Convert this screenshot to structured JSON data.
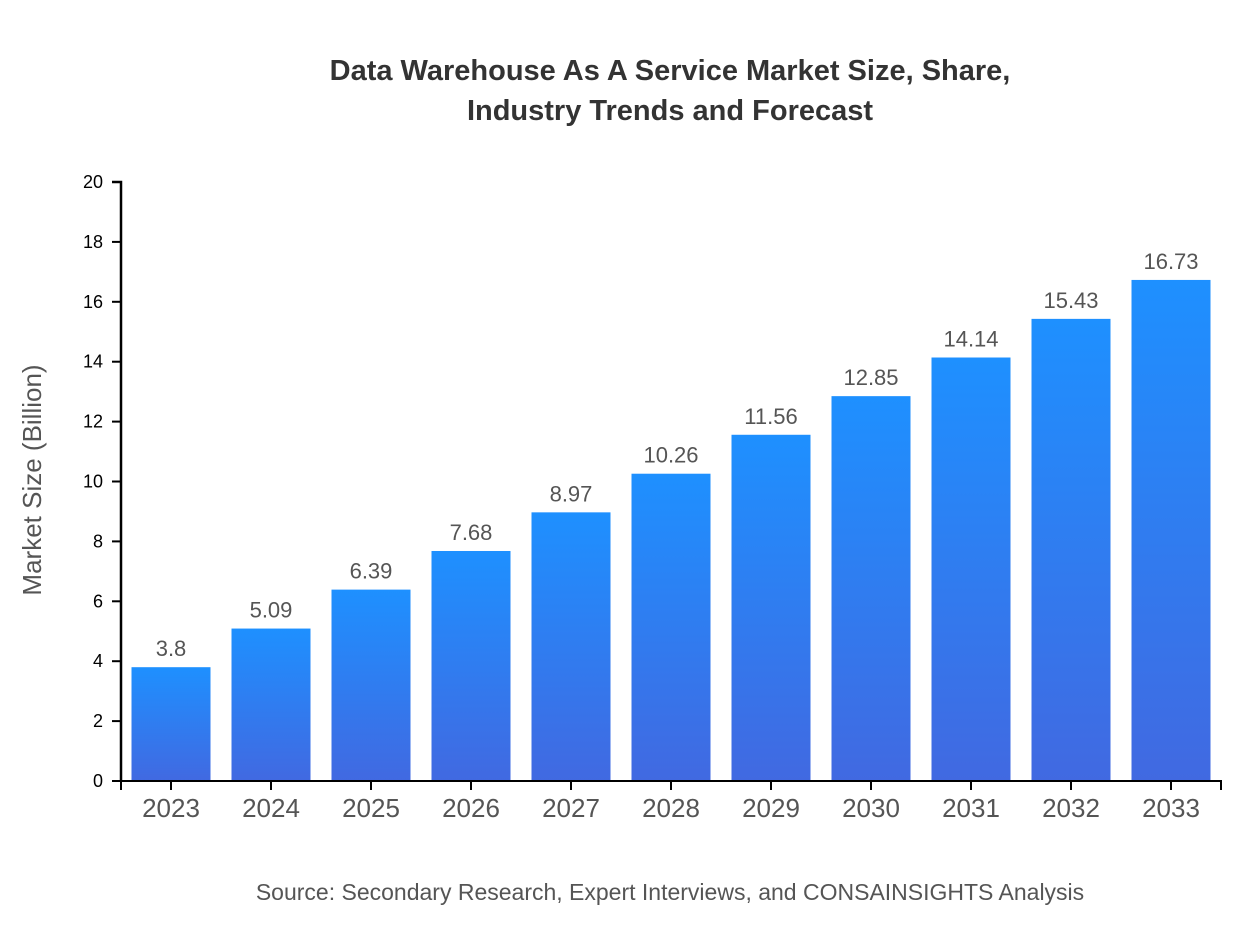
{
  "chart_data": {
    "type": "bar",
    "title_lines": [
      "Data Warehouse As A Service Market Size, Share,",
      "Industry Trends and Forecast"
    ],
    "ylabel": "Market Size (Billion)",
    "xlabel": "",
    "categories": [
      "2023",
      "2024",
      "2025",
      "2026",
      "2027",
      "2028",
      "2029",
      "2030",
      "2031",
      "2032",
      "2033"
    ],
    "values": [
      3.8,
      5.09,
      6.39,
      7.68,
      8.97,
      10.26,
      11.56,
      12.85,
      14.14,
      15.43,
      16.73
    ],
    "data_labels": [
      "3.8",
      "5.09",
      "6.39",
      "7.68",
      "8.97",
      "10.26",
      "11.56",
      "12.85",
      "14.14",
      "15.43",
      "16.73"
    ],
    "ylim": [
      0,
      20
    ],
    "yticks": [
      0,
      2,
      4,
      6,
      8,
      10,
      12,
      14,
      16,
      18,
      20
    ],
    "grid": false,
    "legend": "none",
    "colors": {
      "bar_top": "#1e90ff",
      "bar_bottom": "#4169e1",
      "label_text": "#555555",
      "title_text": "#333333"
    },
    "source": "Source: Secondary Research, Expert Interviews, and CONSAINSIGHTS Analysis"
  }
}
